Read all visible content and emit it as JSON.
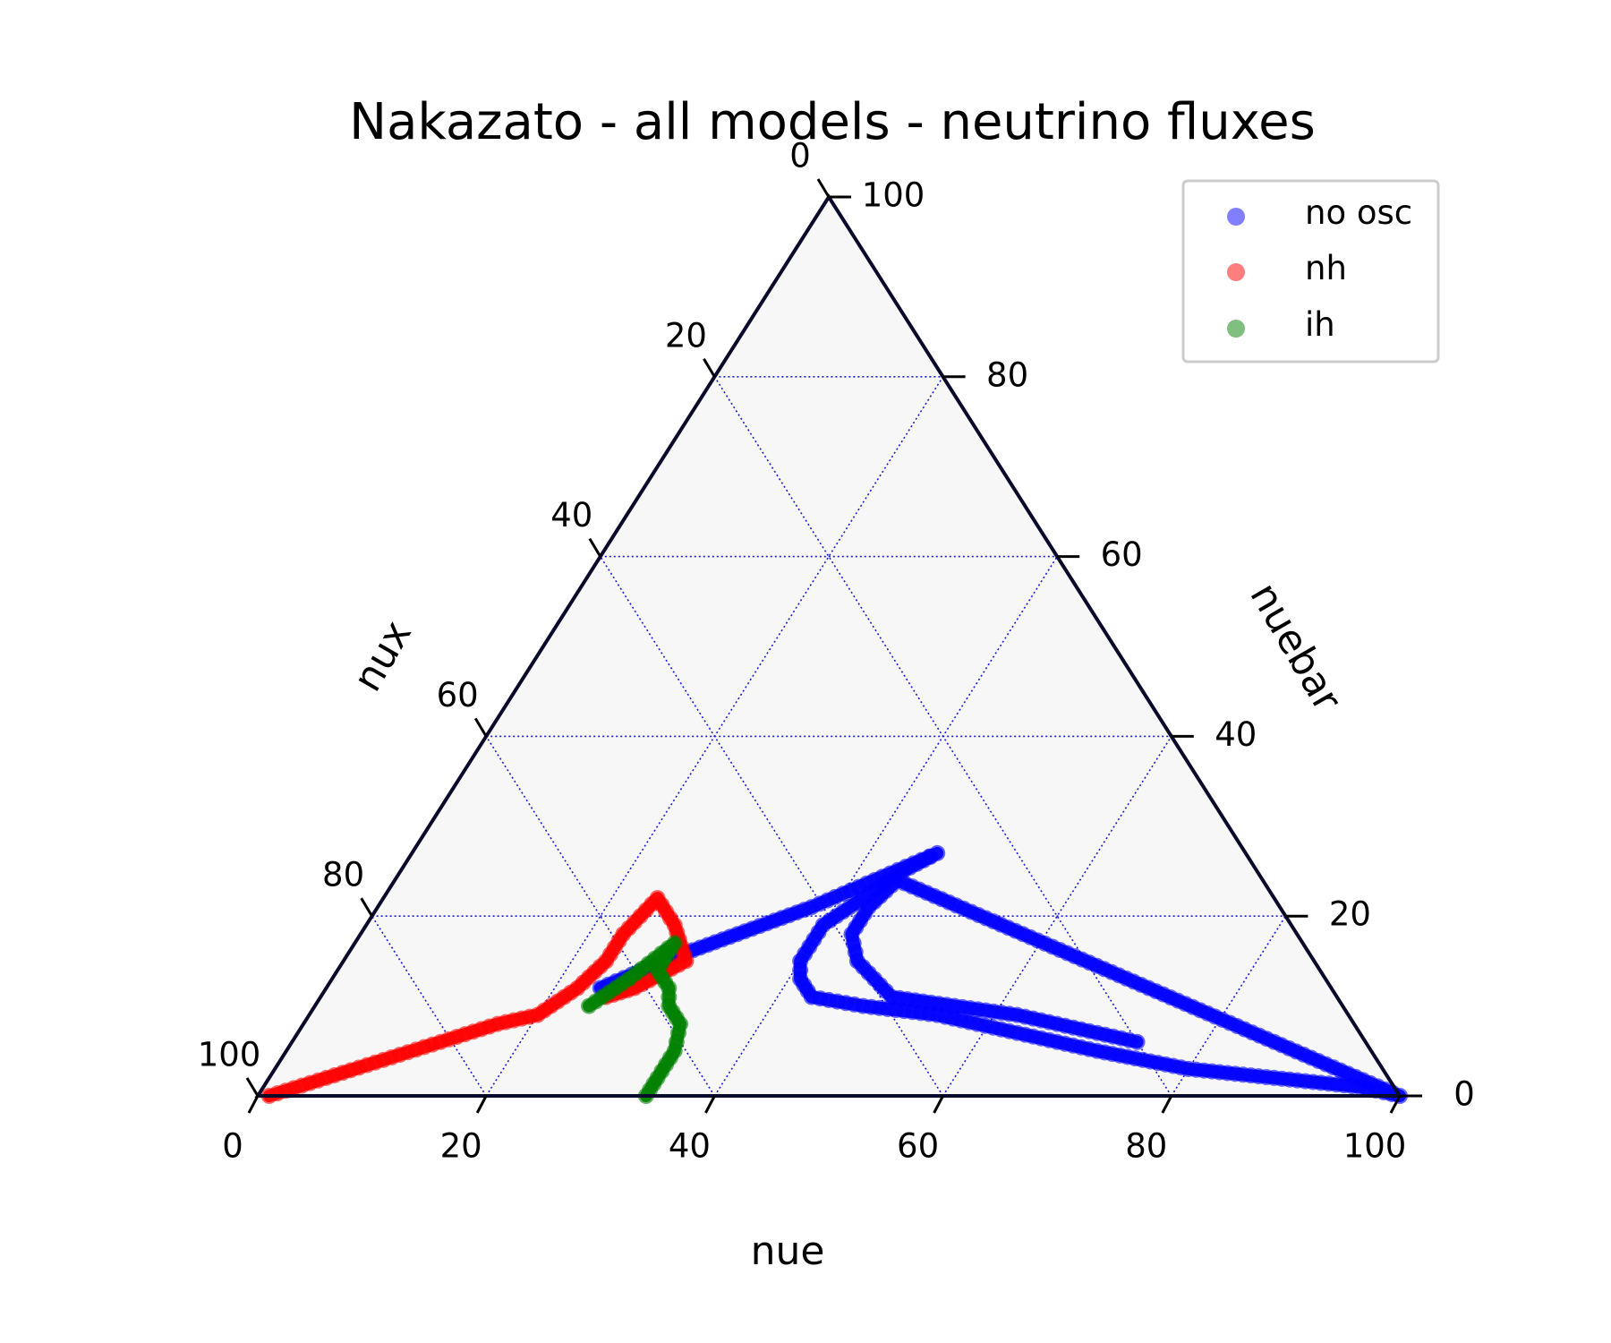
{
  "chart_data": {
    "type": "scatter",
    "subtype": "ternary",
    "title": "Nakazato - all models - neutrino fluxes",
    "axes": {
      "bottom": {
        "label": "nue",
        "ticks": [
          "0",
          "20",
          "40",
          "60",
          "80",
          "100"
        ]
      },
      "right": {
        "label": "nuebar",
        "ticks": [
          "0",
          "20",
          "40",
          "60",
          "80",
          "100"
        ]
      },
      "left": {
        "label": "nux",
        "ticks": [
          "0",
          "20",
          "40",
          "60",
          "80",
          "100"
        ]
      }
    },
    "range": [
      0,
      100
    ],
    "grid": true,
    "legend_position": "top-right",
    "series": [
      {
        "name": "no osc",
        "color": "#0000ff",
        "points": [
          [
            24,
            12
          ],
          [
            28,
            15
          ],
          [
            33,
            18
          ],
          [
            38,
            21
          ],
          [
            42,
            24
          ],
          [
            46,
            27
          ],
          [
            44,
            25
          ],
          [
            42,
            22
          ],
          [
            40,
            19
          ],
          [
            40,
            15
          ],
          [
            41,
            13
          ],
          [
            43,
            11
          ],
          [
            48,
            10
          ],
          [
            55,
            9
          ],
          [
            63,
            7
          ],
          [
            71,
            5
          ],
          [
            80,
            3
          ],
          [
            88,
            2
          ],
          [
            96,
            1
          ],
          [
            100,
            0
          ],
          [
            44,
            24
          ],
          [
            43,
            21
          ],
          [
            43,
            18
          ],
          [
            45,
            15
          ],
          [
            50,
            11
          ],
          [
            62,
            9
          ],
          [
            74,
            6
          ]
        ]
      },
      {
        "name": "nh",
        "color": "#ff0000",
        "points": [
          [
            1,
            0
          ],
          [
            5,
            2
          ],
          [
            9,
            4
          ],
          [
            13,
            6
          ],
          [
            17,
            8
          ],
          [
            20,
            9
          ],
          [
            22,
            12
          ],
          [
            23,
            15
          ],
          [
            23,
            18
          ],
          [
            24,
            22
          ],
          [
            27,
            19
          ],
          [
            30,
            15
          ],
          [
            27,
            12
          ],
          [
            25,
            11
          ]
        ]
      },
      {
        "name": "ih",
        "color": "#008000",
        "points": [
          [
            24,
            10
          ],
          [
            26,
            13
          ],
          [
            28,
            17
          ],
          [
            28,
            14
          ],
          [
            30,
            12
          ],
          [
            31,
            10
          ],
          [
            33,
            8
          ],
          [
            34,
            5
          ],
          [
            34,
            2
          ],
          [
            34,
            0
          ]
        ]
      }
    ]
  }
}
